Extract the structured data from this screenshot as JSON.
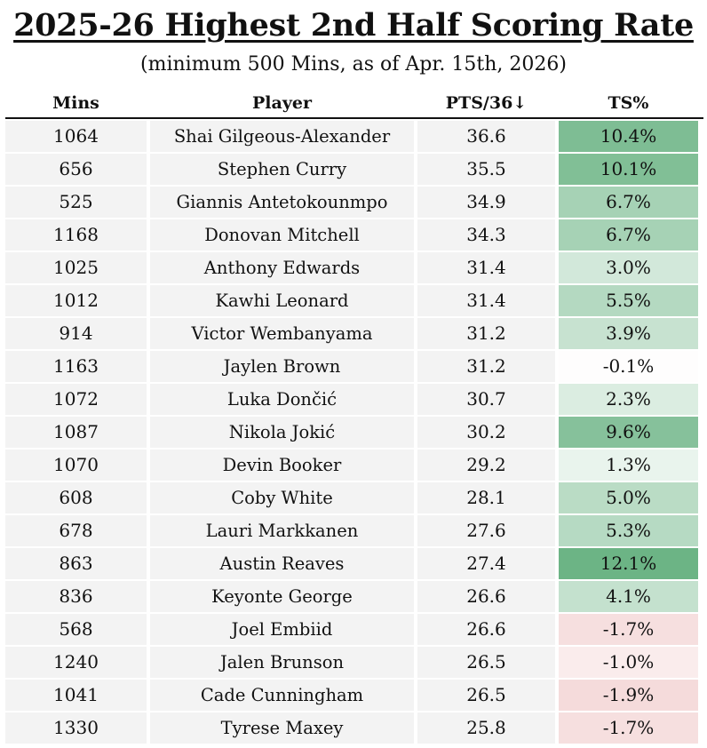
{
  "chart_data": {
    "type": "table",
    "title": "2025-26 Highest 2nd Half Scoring Rate",
    "subtitle": "(minimum 500 Mins, as of Apr. 15th, 2026)",
    "columns": [
      "Mins",
      "Player",
      "PTS/36↓",
      "TS%"
    ],
    "rows": [
      {
        "mins": "1064",
        "player": "Shai Gilgeous-Alexander",
        "pts36": "36.6",
        "ts": "10.4%",
        "ts_value": 10.4
      },
      {
        "mins": "656",
        "player": "Stephen Curry",
        "pts36": "35.5",
        "ts": "10.1%",
        "ts_value": 10.1
      },
      {
        "mins": "525",
        "player": "Giannis Antetokounmpo",
        "pts36": "34.9",
        "ts": "6.7%",
        "ts_value": 6.7
      },
      {
        "mins": "1168",
        "player": "Donovan Mitchell",
        "pts36": "34.3",
        "ts": "6.7%",
        "ts_value": 6.7
      },
      {
        "mins": "1025",
        "player": "Anthony Edwards",
        "pts36": "31.4",
        "ts": "3.0%",
        "ts_value": 3.0
      },
      {
        "mins": "1012",
        "player": "Kawhi Leonard",
        "pts36": "31.4",
        "ts": "5.5%",
        "ts_value": 5.5
      },
      {
        "mins": "914",
        "player": "Victor Wembanyama",
        "pts36": "31.2",
        "ts": "3.9%",
        "ts_value": 3.9
      },
      {
        "mins": "1163",
        "player": "Jaylen Brown",
        "pts36": "31.2",
        "ts": "-0.1%",
        "ts_value": -0.1
      },
      {
        "mins": "1072",
        "player": "Luka Dončić",
        "pts36": "30.7",
        "ts": "2.3%",
        "ts_value": 2.3
      },
      {
        "mins": "1087",
        "player": "Nikola Jokić",
        "pts36": "30.2",
        "ts": "9.6%",
        "ts_value": 9.6
      },
      {
        "mins": "1070",
        "player": "Devin Booker",
        "pts36": "29.2",
        "ts": "1.3%",
        "ts_value": 1.3
      },
      {
        "mins": "608",
        "player": "Coby White",
        "pts36": "28.1",
        "ts": "5.0%",
        "ts_value": 5.0
      },
      {
        "mins": "678",
        "player": "Lauri Markkanen",
        "pts36": "27.6",
        "ts": "5.3%",
        "ts_value": 5.3
      },
      {
        "mins": "863",
        "player": "Austin Reaves",
        "pts36": "27.4",
        "ts": "12.1%",
        "ts_value": 12.1
      },
      {
        "mins": "836",
        "player": "Keyonte George",
        "pts36": "26.6",
        "ts": "4.1%",
        "ts_value": 4.1
      },
      {
        "mins": "568",
        "player": "Joel Embiid",
        "pts36": "26.6",
        "ts": "-1.7%",
        "ts_value": -1.7
      },
      {
        "mins": "1240",
        "player": "Jalen Brunson",
        "pts36": "26.5",
        "ts": "-1.0%",
        "ts_value": -1.0
      },
      {
        "mins": "1041",
        "player": "Cade Cunningham",
        "pts36": "26.5",
        "ts": "-1.9%",
        "ts_value": -1.9
      },
      {
        "mins": "1330",
        "player": "Tyrese Maxey",
        "pts36": "25.8",
        "ts": "-1.7%",
        "ts_value": -1.7
      }
    ]
  },
  "colors": {
    "positive_strong": "#6cb485",
    "negative_strong": "#f1cccc",
    "neutral": "#ffffff",
    "row_fill": "#f3f3f3"
  }
}
